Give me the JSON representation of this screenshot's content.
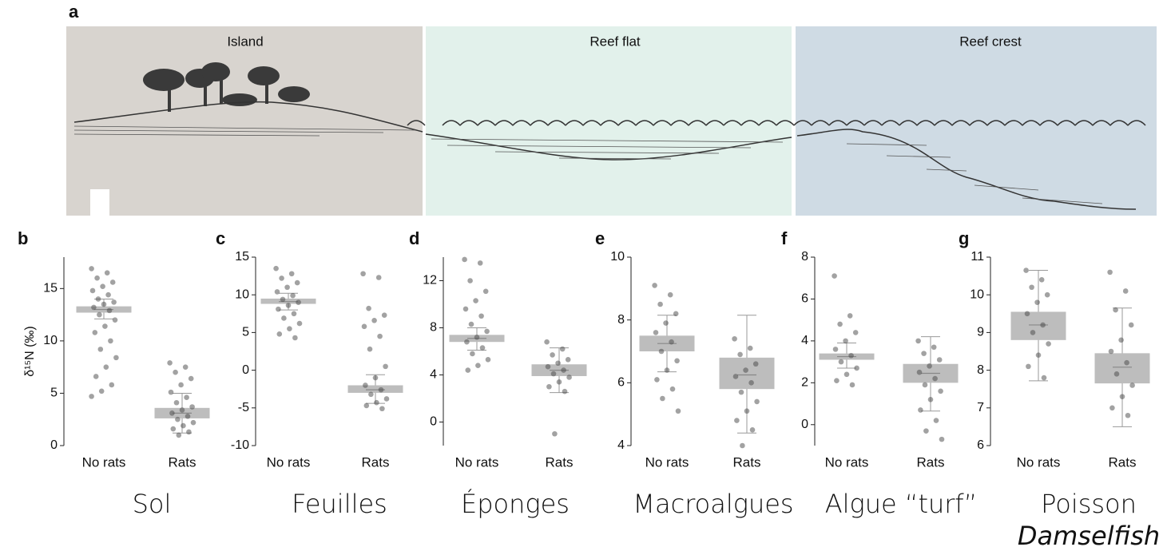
{
  "diagram": {
    "label": "a",
    "zones": [
      "Island",
      "Reef flat",
      "Reef crest"
    ]
  },
  "chart_data": [
    {
      "type": "box",
      "label": "b",
      "caption": "Sol",
      "ylabel": "δ¹⁵N (‰)",
      "categories": [
        "No rats",
        "Rats"
      ],
      "ylim": [
        0,
        18
      ],
      "yticks": [
        0,
        5,
        10,
        15
      ],
      "boxes": [
        {
          "q1": 12.7,
          "median": 13.0,
          "q3": 13.3,
          "whisker_low": 12.1,
          "whisker_high": 14.0,
          "points": [
            16.9,
            16.5,
            16.0,
            15.6,
            15.2,
            14.8,
            14.4,
            14.0,
            13.7,
            13.5,
            13.2,
            12.9,
            12.5,
            12.0,
            11.4,
            10.8,
            10.0,
            9.2,
            8.4,
            7.5,
            6.6,
            5.8,
            5.2,
            4.7
          ]
        },
        {
          "q1": 2.6,
          "median": 3.1,
          "q3": 3.6,
          "whisker_low": 1.2,
          "whisker_high": 5.0,
          "points": [
            7.9,
            7.5,
            7.0,
            6.4,
            5.8,
            5.1,
            4.6,
            4.1,
            3.7,
            3.4,
            3.1,
            2.8,
            2.5,
            2.2,
            1.9,
            1.6,
            1.3,
            1.0
          ]
        }
      ]
    },
    {
      "type": "box",
      "label": "c",
      "caption": "Feuilles",
      "categories": [
        "No rats",
        "Rats"
      ],
      "ylim": [
        -10,
        15
      ],
      "yticks": [
        -10,
        -5,
        0,
        5,
        10,
        15
      ],
      "boxes": [
        {
          "q1": 8.8,
          "median": 9.1,
          "q3": 9.5,
          "whisker_low": 8.0,
          "whisker_high": 10.2,
          "points": [
            13.5,
            12.8,
            12.2,
            11.6,
            11.0,
            10.4,
            9.9,
            9.4,
            9.0,
            8.6,
            8.1,
            7.5,
            6.9,
            6.2,
            5.5,
            4.8,
            4.3
          ]
        },
        {
          "q1": -3.0,
          "median": -2.6,
          "q3": -2.0,
          "whisker_low": -4.4,
          "whisker_high": -0.6,
          "points": [
            12.8,
            12.3,
            8.2,
            7.3,
            6.6,
            5.8,
            4.5,
            2.8,
            0.5,
            -1.0,
            -2.0,
            -2.6,
            -3.2,
            -3.8,
            -4.3,
            -4.7,
            -5.1
          ]
        }
      ]
    },
    {
      "type": "box",
      "label": "d",
      "caption": "Éponges",
      "categories": [
        "No rats",
        "Rats"
      ],
      "ylim": [
        -2,
        14
      ],
      "yticks": [
        0,
        4,
        8,
        12
      ],
      "boxes": [
        {
          "q1": 6.8,
          "median": 7.1,
          "q3": 7.4,
          "whisker_low": 6.1,
          "whisker_high": 8.0,
          "points": [
            13.8,
            13.5,
            12.0,
            11.1,
            10.3,
            9.6,
            9.0,
            8.3,
            7.7,
            7.2,
            6.8,
            6.3,
            5.8,
            5.3,
            4.8,
            4.4
          ]
        },
        {
          "q1": 3.9,
          "median": 4.4,
          "q3": 4.9,
          "whisker_low": 2.5,
          "whisker_high": 6.3,
          "points": [
            6.8,
            6.2,
            5.7,
            5.3,
            5.0,
            4.7,
            4.4,
            4.1,
            3.8,
            3.4,
            3.0,
            2.6,
            -1.0
          ]
        }
      ]
    },
    {
      "type": "box",
      "label": "e",
      "caption": "Macroalgues",
      "categories": [
        "No rats",
        "Rats"
      ],
      "ylim": [
        4,
        10
      ],
      "yticks": [
        4,
        6,
        8,
        10
      ],
      "boxes": [
        {
          "q1": 7.0,
          "median": 7.25,
          "q3": 7.5,
          "whisker_low": 6.35,
          "whisker_high": 8.15,
          "points": [
            9.1,
            8.8,
            8.5,
            8.2,
            7.9,
            7.6,
            7.3,
            7.0,
            6.7,
            6.4,
            6.1,
            5.8,
            5.5,
            5.1
          ]
        },
        {
          "q1": 5.8,
          "median": 6.25,
          "q3": 6.8,
          "whisker_low": 4.4,
          "whisker_high": 8.15,
          "points": [
            7.4,
            7.1,
            6.9,
            6.6,
            6.4,
            6.2,
            6.0,
            5.7,
            5.4,
            5.1,
            4.8,
            4.5,
            4.0
          ]
        }
      ]
    },
    {
      "type": "box",
      "label": "f",
      "caption": "Algue “turf”",
      "categories": [
        "No rats",
        "Rats"
      ],
      "ylim": [
        -1,
        8
      ],
      "yticks": [
        0,
        2,
        4,
        6,
        8
      ],
      "boxes": [
        {
          "q1": 3.1,
          "median": 3.25,
          "q3": 3.4,
          "whisker_low": 2.7,
          "whisker_high": 3.9,
          "points": [
            7.1,
            5.2,
            4.8,
            4.4,
            4.0,
            3.6,
            3.3,
            3.0,
            2.7,
            2.4,
            2.1,
            1.9
          ]
        },
        {
          "q1": 2.0,
          "median": 2.45,
          "q3": 2.9,
          "whisker_low": 0.65,
          "whisker_high": 4.2,
          "points": [
            4.0,
            3.7,
            3.4,
            3.1,
            2.8,
            2.5,
            2.2,
            1.9,
            1.6,
            1.2,
            0.7,
            0.2,
            -0.3,
            -0.7
          ]
        }
      ]
    },
    {
      "type": "box",
      "label": "g",
      "caption": "Poisson",
      "subcaption": "Damselfish",
      "categories": [
        "No rats",
        "Rats"
      ],
      "ylim": [
        6,
        11
      ],
      "yticks": [
        6,
        7,
        8,
        9,
        10,
        11
      ],
      "boxes": [
        {
          "q1": 8.8,
          "median": 9.2,
          "q3": 9.55,
          "whisker_low": 7.72,
          "whisker_high": 10.65,
          "points": [
            10.65,
            10.4,
            10.2,
            10.0,
            9.8,
            9.5,
            9.2,
            9.0,
            8.7,
            8.4,
            8.1,
            7.8
          ]
        },
        {
          "q1": 7.65,
          "median": 8.08,
          "q3": 8.45,
          "whisker_low": 6.5,
          "whisker_high": 9.65,
          "points": [
            10.6,
            10.1,
            9.6,
            9.2,
            8.8,
            8.5,
            8.2,
            7.9,
            7.6,
            7.3,
            7.0,
            6.8
          ]
        }
      ]
    }
  ]
}
